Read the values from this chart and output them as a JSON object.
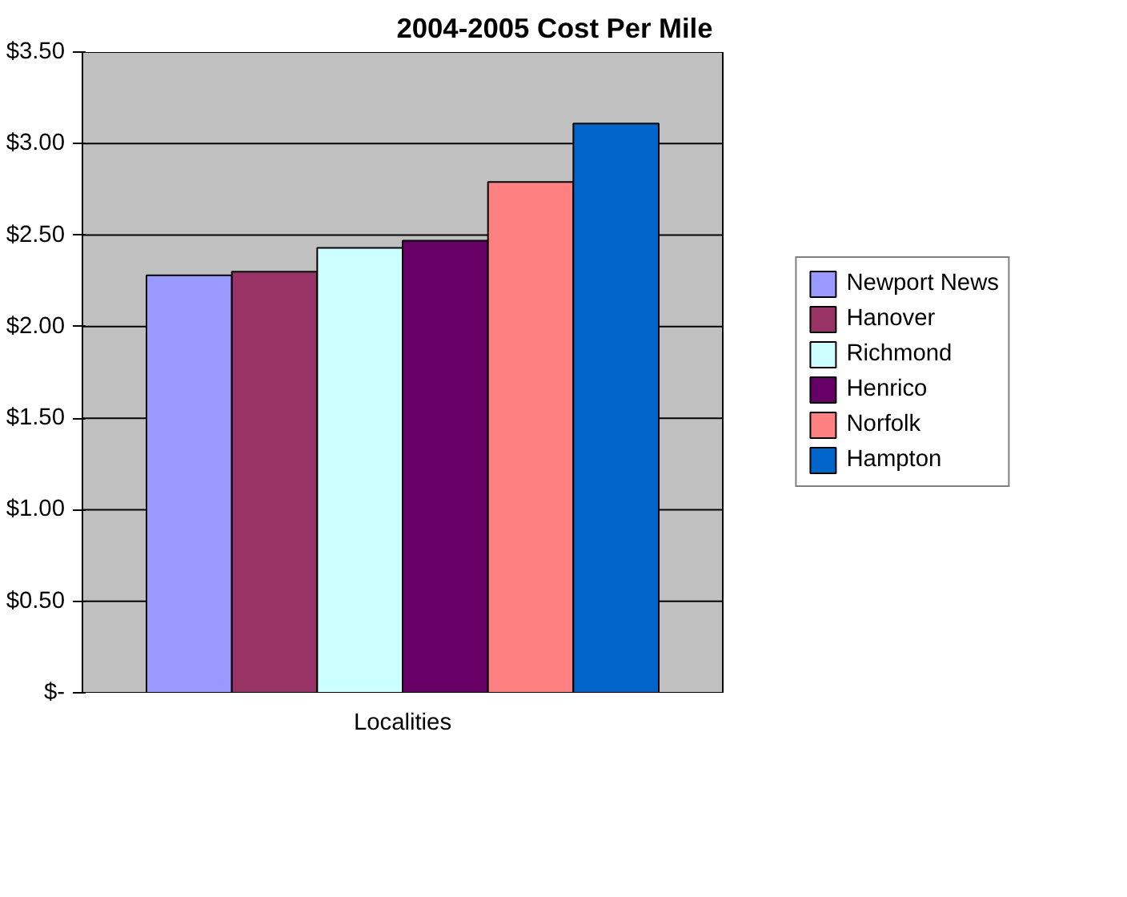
{
  "chart_data": {
    "type": "bar",
    "title": "2004-2005 Cost Per Mile",
    "categories": [
      "Localities"
    ],
    "series": [
      {
        "name": "Newport News",
        "color": "#9999ff",
        "values": [
          2.28
        ]
      },
      {
        "name": "Hanover",
        "color": "#993366",
        "values": [
          2.3
        ]
      },
      {
        "name": "Richmond",
        "color": "#ccffff",
        "values": [
          2.43
        ]
      },
      {
        "name": "Henrico",
        "color": "#660066",
        "values": [
          2.47
        ]
      },
      {
        "name": "Norfolk",
        "color": "#ff8080",
        "values": [
          2.79
        ]
      },
      {
        "name": "Hampton",
        "color": "#0066cc",
        "values": [
          3.11
        ]
      }
    ],
    "ylim": [
      0,
      3.5
    ],
    "yticks": [
      {
        "value": 0,
        "label": "$-"
      },
      {
        "value": 0.5,
        "label": "$0.50"
      },
      {
        "value": 1,
        "label": "$1.00"
      },
      {
        "value": 1.5,
        "label": "$1.50"
      },
      {
        "value": 2,
        "label": "$2.00"
      },
      {
        "value": 2.5,
        "label": "$2.50"
      },
      {
        "value": 3,
        "label": "$3.00"
      },
      {
        "value": 3.5,
        "label": "$3.50"
      }
    ],
    "grid": "y",
    "legend": "right"
  }
}
